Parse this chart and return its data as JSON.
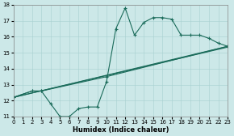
{
  "xlabel": "Humidex (Indice chaleur)",
  "xlim": [
    0,
    23
  ],
  "ylim": [
    11,
    18
  ],
  "xticks": [
    0,
    1,
    2,
    3,
    4,
    5,
    6,
    7,
    8,
    9,
    10,
    11,
    12,
    13,
    14,
    15,
    16,
    17,
    18,
    19,
    20,
    21,
    22,
    23
  ],
  "yticks": [
    11,
    12,
    13,
    14,
    15,
    16,
    17,
    18
  ],
  "bg_color": "#cce8e8",
  "line_color": "#1a6b5a",
  "curve1_x": [
    0,
    2,
    3,
    4,
    5,
    6,
    7,
    8,
    9,
    10,
    11,
    12,
    13,
    14,
    15,
    16,
    17,
    18,
    19,
    20,
    21,
    22,
    23
  ],
  "curve1_y": [
    12.2,
    12.6,
    12.6,
    11.8,
    11.0,
    11.0,
    11.5,
    11.6,
    11.6,
    13.2,
    16.5,
    17.8,
    16.1,
    16.9,
    17.2,
    17.2,
    17.1,
    16.1,
    16.1,
    16.1,
    15.9,
    15.6,
    15.4
  ],
  "curve2_x": [
    0,
    2,
    3,
    10,
    23
  ],
  "curve2_y": [
    12.2,
    12.6,
    12.6,
    13.5,
    15.4
  ],
  "curve3_x": [
    0,
    23
  ],
  "curve3_y": [
    12.2,
    15.4
  ],
  "curve4_x": [
    0,
    23
  ],
  "curve4_y": [
    12.2,
    15.35
  ]
}
